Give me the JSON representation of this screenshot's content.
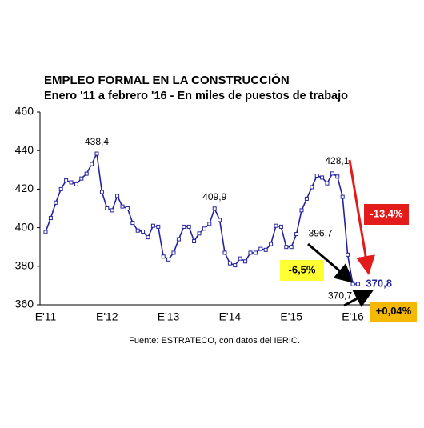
{
  "chart_data": {
    "type": "line",
    "title": "EMPLEO FORMAL EN LA CONSTRUCCIÓN",
    "subtitle": "Enero '11 a febrero '16 - En miles de puestos de trabajo",
    "source": "Fuente: ESTRATECO, con datos del IERIC.",
    "categories": [
      "E'11",
      null,
      null,
      null,
      null,
      null,
      null,
      null,
      null,
      null,
      null,
      null,
      "E'12",
      null,
      null,
      null,
      null,
      null,
      null,
      null,
      null,
      null,
      null,
      null,
      "E'13",
      null,
      null,
      null,
      null,
      null,
      null,
      null,
      null,
      null,
      null,
      null,
      "E'14",
      null,
      null,
      null,
      null,
      null,
      null,
      null,
      null,
      null,
      null,
      null,
      "E'15",
      null,
      null,
      null,
      null,
      null,
      null,
      null,
      null,
      null,
      null,
      null,
      "E'16",
      null
    ],
    "series": [
      {
        "name": null,
        "color": "#2323a0",
        "values": [
          397.8,
          405,
          413,
          420,
          424.5,
          423.5,
          422.5,
          425.5,
          428,
          433,
          438.4,
          418.5,
          410,
          409,
          416.5,
          411,
          410,
          402.5,
          398.5,
          398,
          395,
          401,
          400.5,
          385,
          383.5,
          387,
          394,
          400.5,
          400.5,
          393,
          397,
          399.5,
          402,
          409.9,
          404,
          387,
          381.5,
          380.5,
          384,
          382.5,
          387,
          387,
          389,
          388.5,
          391.5,
          401,
          400.5,
          390,
          390,
          396.7,
          409,
          415,
          421,
          427,
          426,
          423,
          428.1,
          426.5,
          416,
          386,
          370.7,
          370.8
        ],
        "value_labels": [
          null,
          null,
          null,
          null,
          null,
          null,
          null,
          null,
          null,
          null,
          "438,4",
          null,
          null,
          null,
          null,
          null,
          null,
          null,
          null,
          null,
          null,
          null,
          null,
          null,
          null,
          null,
          null,
          null,
          null,
          null,
          null,
          null,
          null,
          "409,9",
          null,
          null,
          null,
          null,
          null,
          null,
          null,
          null,
          null,
          null,
          null,
          null,
          null,
          null,
          null,
          "396,7",
          null,
          null,
          null,
          null,
          null,
          null,
          "428,1",
          null,
          null,
          null,
          "370,7",
          "370,8"
        ]
      }
    ],
    "annotations": [
      {
        "text": "-13,4%",
        "color": "#e31b1b"
      },
      {
        "text": "-6,5%",
        "color": "#ffff33"
      },
      {
        "text": "+0,04%",
        "color": "#f5b800"
      }
    ],
    "ylim": [
      360,
      460
    ],
    "yticks": [
      360,
      380,
      400,
      420,
      440,
      460
    ],
    "grid": false
  }
}
